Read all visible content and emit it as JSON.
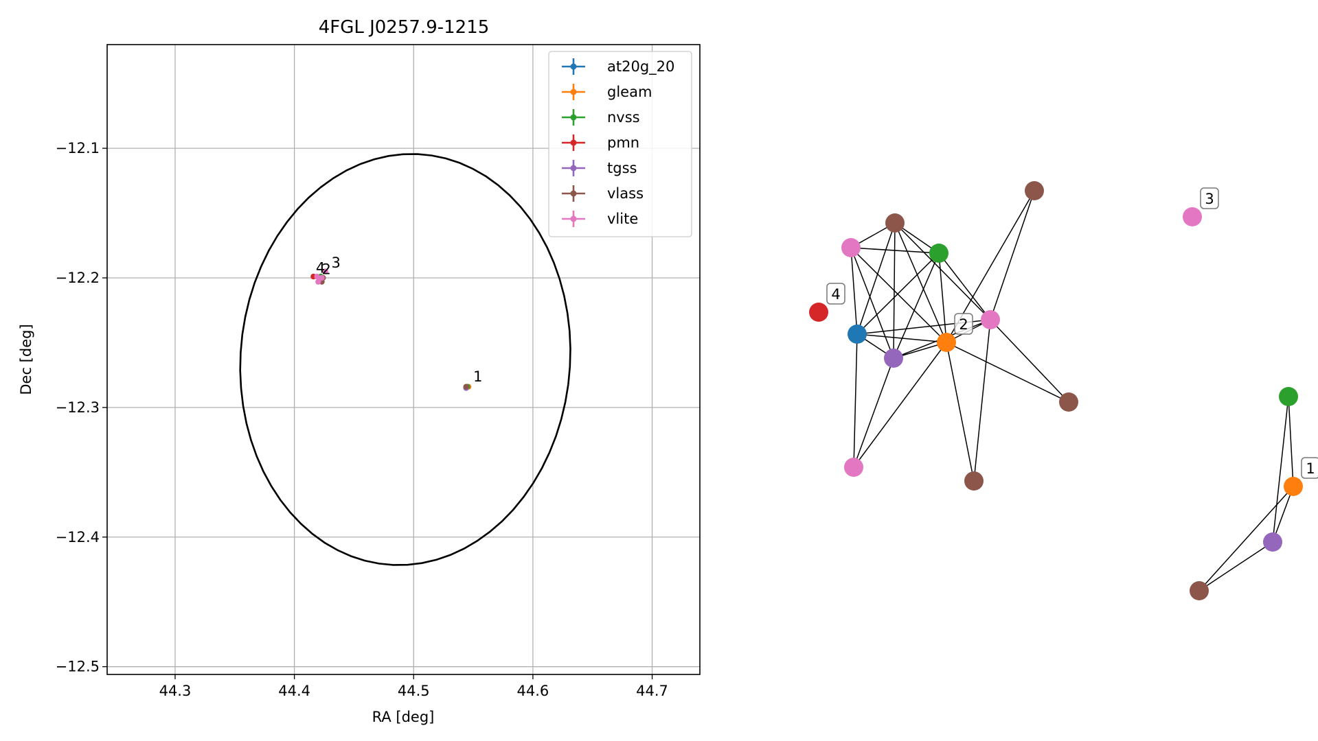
{
  "colors": {
    "at20g_20": "#1f77b4",
    "gleam": "#ff7f0e",
    "nvss": "#2ca02c",
    "pmn": "#d62728",
    "tgss": "#9467bd",
    "vlass": "#8c564b",
    "vlite": "#e377c2"
  },
  "chart_data": [
    {
      "type": "scatter",
      "title": "4FGL J0257.9-1215",
      "xlabel": "RA [deg]",
      "ylabel": "Dec [deg]",
      "xlim": [
        44.243,
        44.74
      ],
      "ylim": [
        -12.506,
        -12.02
      ],
      "xticks": [
        44.3,
        44.4,
        44.5,
        44.6,
        44.7
      ],
      "xtick_labels": [
        "44.3",
        "44.4",
        "44.5",
        "44.6",
        "44.7"
      ],
      "yticks": [
        -12.1,
        -12.2,
        -12.3,
        -12.4,
        -12.5
      ],
      "ytick_labels": [
        "−12.1",
        "−12.2",
        "−12.3",
        "−12.4",
        "−12.5"
      ],
      "grid": true,
      "legend_position": "top-right",
      "ellipse": {
        "center": [
          44.493,
          -12.263
        ],
        "semi_axis_ra": 0.138,
        "semi_axis_dec": 0.159,
        "angle_deg": -8
      },
      "series": [
        {
          "name": "at20g_20",
          "points": [
            [
              44.421,
              -12.201
            ]
          ]
        },
        {
          "name": "gleam",
          "points": [
            [
              44.421,
              -12.2
            ],
            [
              44.546,
              -12.284
            ]
          ]
        },
        {
          "name": "nvss",
          "points": [
            [
              44.422,
              -12.199
            ],
            [
              44.545,
              -12.284
            ]
          ]
        },
        {
          "name": "pmn",
          "points": [
            [
              44.416,
              -12.199
            ]
          ]
        },
        {
          "name": "tgss",
          "points": [
            [
              44.421,
              -12.202
            ],
            [
              44.544,
              -12.285
            ]
          ]
        },
        {
          "name": "vlass",
          "points": [
            [
              44.421,
              -12.201
            ],
            [
              44.423,
              -12.203
            ],
            [
              44.424,
              -12.2
            ],
            [
              44.544,
              -12.284
            ]
          ]
        },
        {
          "name": "vlite",
          "points": [
            [
              44.419,
              -12.199
            ],
            [
              44.426,
              -12.195
            ],
            [
              44.423,
              -12.2
            ],
            [
              44.42,
              -12.203
            ]
          ]
        }
      ],
      "annotations": [
        {
          "text": "1",
          "x": 44.55,
          "y": -12.28
        },
        {
          "text": "2",
          "x": 44.423,
          "y": -12.197
        },
        {
          "text": "3",
          "x": 44.431,
          "y": -12.192
        },
        {
          "text": "4",
          "x": 44.418,
          "y": -12.196
        }
      ]
    },
    {
      "type": "network",
      "nodes": [
        {
          "id": "n1",
          "catalog": "vlass"
        },
        {
          "id": "n2",
          "catalog": "vlite"
        },
        {
          "id": "n3",
          "catalog": "nvss"
        },
        {
          "id": "n4",
          "catalog": "pmn",
          "label": "4"
        },
        {
          "id": "n5",
          "catalog": "at20g_20"
        },
        {
          "id": "n6",
          "catalog": "tgss"
        },
        {
          "id": "n7",
          "catalog": "gleam",
          "label": "2"
        },
        {
          "id": "n8",
          "catalog": "vlite"
        },
        {
          "id": "n9",
          "catalog": "vlass"
        },
        {
          "id": "n10",
          "catalog": "vlass"
        },
        {
          "id": "n11",
          "catalog": "vlite"
        },
        {
          "id": "n12",
          "catalog": "vlass"
        },
        {
          "id": "n13",
          "catalog": "vlite",
          "label": "3"
        },
        {
          "id": "n14",
          "catalog": "nvss"
        },
        {
          "id": "n15",
          "catalog": "gleam",
          "label": "1"
        },
        {
          "id": "n16",
          "catalog": "tgss"
        },
        {
          "id": "n17",
          "catalog": "vlass"
        }
      ],
      "edges": [
        [
          "n2",
          "n1"
        ],
        [
          "n2",
          "n3"
        ],
        [
          "n2",
          "n5"
        ],
        [
          "n2",
          "n6"
        ],
        [
          "n2",
          "n7"
        ],
        [
          "n1",
          "n3"
        ],
        [
          "n1",
          "n5"
        ],
        [
          "n1",
          "n6"
        ],
        [
          "n1",
          "n7"
        ],
        [
          "n1",
          "n8"
        ],
        [
          "n3",
          "n5"
        ],
        [
          "n3",
          "n6"
        ],
        [
          "n3",
          "n7"
        ],
        [
          "n3",
          "n8"
        ],
        [
          "n5",
          "n6"
        ],
        [
          "n5",
          "n7"
        ],
        [
          "n5",
          "n8"
        ],
        [
          "n5",
          "n11"
        ],
        [
          "n6",
          "n7"
        ],
        [
          "n6",
          "n8"
        ],
        [
          "n6",
          "n11"
        ],
        [
          "n7",
          "n8"
        ],
        [
          "n7",
          "n9"
        ],
        [
          "n7",
          "n10"
        ],
        [
          "n7",
          "n11"
        ],
        [
          "n7",
          "n12"
        ],
        [
          "n8",
          "n9"
        ],
        [
          "n8",
          "n10"
        ],
        [
          "n8",
          "n12"
        ],
        [
          "n14",
          "n15"
        ],
        [
          "n14",
          "n16"
        ],
        [
          "n15",
          "n16"
        ],
        [
          "n15",
          "n17"
        ],
        [
          "n16",
          "n17"
        ]
      ]
    }
  ]
}
